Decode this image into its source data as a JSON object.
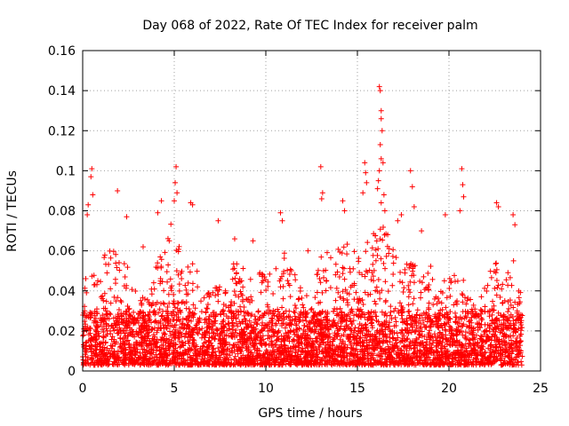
{
  "chart_data": {
    "type": "scatter",
    "title": "Day 068 of 2022, Rate Of TEC Index for receiver palm",
    "xlabel": "GPS time / hours",
    "ylabel": "ROTI / TECUs",
    "xlim": [
      0,
      25
    ],
    "ylim": [
      0,
      0.16
    ],
    "xticks": [
      "0",
      "5",
      "10",
      "15",
      "20",
      "25"
    ],
    "yticks": [
      "0",
      "0.02",
      "0.04",
      "0.06",
      "0.08",
      "0.1",
      "0.12",
      "0.14",
      "0.16"
    ],
    "grid": true,
    "marker": "+",
    "color": "#ff0000",
    "data_x_range": [
      0,
      24
    ],
    "baseline_range": [
      0.003,
      0.03
    ],
    "envelope": [
      [
        0.0,
        0.03
      ],
      [
        0.3,
        0.065
      ],
      [
        0.6,
        0.06
      ],
      [
        1.0,
        0.05
      ],
      [
        1.3,
        0.068
      ],
      [
        1.7,
        0.062
      ],
      [
        2.0,
        0.06
      ],
      [
        2.5,
        0.057
      ],
      [
        3.0,
        0.04
      ],
      [
        3.5,
        0.035
      ],
      [
        4.0,
        0.055
      ],
      [
        4.5,
        0.06
      ],
      [
        5.0,
        0.085
      ],
      [
        5.5,
        0.045
      ],
      [
        6.0,
        0.06
      ],
      [
        6.5,
        0.04
      ],
      [
        7.0,
        0.055
      ],
      [
        7.5,
        0.045
      ],
      [
        8.0,
        0.048
      ],
      [
        8.5,
        0.06
      ],
      [
        9.0,
        0.045
      ],
      [
        9.5,
        0.05
      ],
      [
        10.0,
        0.048
      ],
      [
        10.5,
        0.052
      ],
      [
        11.0,
        0.063
      ],
      [
        11.5,
        0.05
      ],
      [
        12.0,
        0.04
      ],
      [
        12.5,
        0.035
      ],
      [
        13.0,
        0.058
      ],
      [
        13.5,
        0.06
      ],
      [
        14.0,
        0.062
      ],
      [
        14.5,
        0.065
      ],
      [
        15.0,
        0.06
      ],
      [
        15.5,
        0.065
      ],
      [
        16.0,
        0.07
      ],
      [
        16.5,
        0.075
      ],
      [
        17.0,
        0.06
      ],
      [
        17.5,
        0.055
      ],
      [
        18.0,
        0.06
      ],
      [
        18.5,
        0.045
      ],
      [
        19.0,
        0.055
      ],
      [
        19.5,
        0.045
      ],
      [
        20.0,
        0.05
      ],
      [
        20.5,
        0.06
      ],
      [
        21.0,
        0.04
      ],
      [
        21.5,
        0.03
      ],
      [
        22.0,
        0.045
      ],
      [
        22.5,
        0.055
      ],
      [
        23.0,
        0.05
      ],
      [
        23.5,
        0.06
      ],
      [
        24.0,
        0.035
      ]
    ],
    "outliers": [
      {
        "x": 0.5,
        "y": 0.101
      },
      {
        "x": 0.45,
        "y": 0.097
      },
      {
        "x": 0.55,
        "y": 0.088
      },
      {
        "x": 0.3,
        "y": 0.083
      },
      {
        "x": 0.25,
        "y": 0.078
      },
      {
        "x": 1.9,
        "y": 0.09
      },
      {
        "x": 2.4,
        "y": 0.077
      },
      {
        "x": 4.3,
        "y": 0.085
      },
      {
        "x": 4.1,
        "y": 0.079
      },
      {
        "x": 5.1,
        "y": 0.102
      },
      {
        "x": 5.05,
        "y": 0.094
      },
      {
        "x": 5.15,
        "y": 0.089
      },
      {
        "x": 5.0,
        "y": 0.085
      },
      {
        "x": 5.9,
        "y": 0.084
      },
      {
        "x": 6.0,
        "y": 0.083
      },
      {
        "x": 7.4,
        "y": 0.075
      },
      {
        "x": 10.8,
        "y": 0.079
      },
      {
        "x": 10.9,
        "y": 0.075
      },
      {
        "x": 13.0,
        "y": 0.102
      },
      {
        "x": 13.1,
        "y": 0.089
      },
      {
        "x": 13.05,
        "y": 0.086
      },
      {
        "x": 14.2,
        "y": 0.085
      },
      {
        "x": 14.3,
        "y": 0.08
      },
      {
        "x": 15.4,
        "y": 0.104
      },
      {
        "x": 15.45,
        "y": 0.099
      },
      {
        "x": 15.5,
        "y": 0.094
      },
      {
        "x": 15.3,
        "y": 0.089
      },
      {
        "x": 16.2,
        "y": 0.142
      },
      {
        "x": 16.25,
        "y": 0.14
      },
      {
        "x": 16.3,
        "y": 0.13
      },
      {
        "x": 16.3,
        "y": 0.126
      },
      {
        "x": 16.35,
        "y": 0.12
      },
      {
        "x": 16.25,
        "y": 0.113
      },
      {
        "x": 16.3,
        "y": 0.106
      },
      {
        "x": 16.4,
        "y": 0.104
      },
      {
        "x": 16.2,
        "y": 0.1
      },
      {
        "x": 16.15,
        "y": 0.095
      },
      {
        "x": 16.1,
        "y": 0.091
      },
      {
        "x": 16.45,
        "y": 0.088
      },
      {
        "x": 16.3,
        "y": 0.084
      },
      {
        "x": 16.5,
        "y": 0.08
      },
      {
        "x": 17.2,
        "y": 0.075
      },
      {
        "x": 17.4,
        "y": 0.078
      },
      {
        "x": 17.9,
        "y": 0.1
      },
      {
        "x": 18.0,
        "y": 0.092
      },
      {
        "x": 18.1,
        "y": 0.082
      },
      {
        "x": 19.8,
        "y": 0.078
      },
      {
        "x": 20.7,
        "y": 0.101
      },
      {
        "x": 20.75,
        "y": 0.093
      },
      {
        "x": 20.8,
        "y": 0.087
      },
      {
        "x": 20.6,
        "y": 0.08
      },
      {
        "x": 22.6,
        "y": 0.084
      },
      {
        "x": 22.7,
        "y": 0.082
      },
      {
        "x": 23.5,
        "y": 0.078
      },
      {
        "x": 23.6,
        "y": 0.073
      },
      {
        "x": 18.5,
        "y": 0.07
      },
      {
        "x": 9.3,
        "y": 0.065
      },
      {
        "x": 12.3,
        "y": 0.06
      },
      {
        "x": 3.3,
        "y": 0.062
      },
      {
        "x": 8.3,
        "y": 0.066
      }
    ]
  }
}
